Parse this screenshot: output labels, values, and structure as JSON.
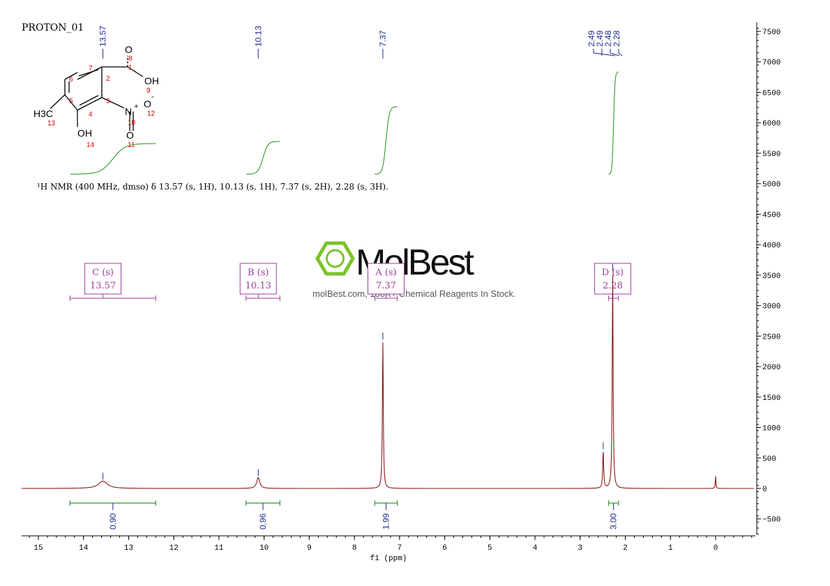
{
  "spectrum_title": "PROTON_01",
  "nmr_summary": "¹H NMR (400 MHz, dmso) δ 13.57 (s, 1H), 10.13 (s, 1H), 7.37 (s, 2H), 2.28 (s, 3H).",
  "watermark": {
    "brand": "MolBest",
    "tagline": "molBest.com, 180K+ Chemical Reagents In Stock."
  },
  "molecule": {
    "atoms": [
      {
        "symbol": "O",
        "num": "8"
      },
      {
        "symbol": "OH",
        "num": "9"
      },
      {
        "symbol": "O",
        "num": "12",
        "charge": "-"
      },
      {
        "symbol": "N",
        "num": "10",
        "charge": "+"
      },
      {
        "symbol": "O",
        "num": "11"
      },
      {
        "symbol": "OH",
        "num": "14"
      },
      {
        "symbol": "H3C",
        "num": "13"
      }
    ],
    "ring_numbers": [
      "1",
      "2",
      "3",
      "4",
      "5",
      "6",
      "7"
    ]
  },
  "colors": {
    "spectrum": "#8b1a1a",
    "integral_curve": "#2e9a2e",
    "integral_bar": "#2e9a2e",
    "peak_label": "#1c2b8c",
    "multiplet": "#9b3b9b",
    "mol_number": "#d40000",
    "brand_green": "#7cc22a"
  },
  "chart_data": {
    "type": "line",
    "title": "PROTON_01",
    "xlabel": "f1 (ppm)",
    "ylabel": "",
    "xlim": [
      15.4,
      -0.9
    ],
    "ylim": [
      -800,
      7700
    ],
    "x_ticks": [
      "15",
      "14",
      "13",
      "12",
      "11",
      "10",
      "9",
      "8",
      "7",
      "6",
      "5",
      "4",
      "3",
      "2",
      "1",
      "0"
    ],
    "y_ticks": [
      "7500",
      "7000",
      "6500",
      "6000",
      "5500",
      "5000",
      "4500",
      "4000",
      "3500",
      "3000",
      "2500",
      "2000",
      "1500",
      "1000",
      "500",
      "0",
      "−500"
    ],
    "grid": false,
    "peaks": [
      {
        "ppm": 13.57,
        "height": 120,
        "width": 0.12
      },
      {
        "ppm": 10.13,
        "height": 180,
        "width": 0.04
      },
      {
        "ppm": 7.37,
        "height": 2420,
        "width": 0.012
      },
      {
        "ppm": 2.49,
        "height": 620,
        "width": 0.012
      },
      {
        "ppm": 2.28,
        "height": 3550,
        "width": 0.012
      },
      {
        "ppm": 0.0,
        "height": 200,
        "width": 0.008
      }
    ],
    "peak_top_labels": [
      {
        "ppm": 13.57,
        "text": "13.57"
      },
      {
        "ppm": 10.13,
        "text": "10.13"
      },
      {
        "ppm": 7.37,
        "text": "7.37"
      }
    ],
    "peak_group_labels": [
      "2.49",
      "2.49",
      "2.48",
      "2.28"
    ],
    "multiplets": [
      {
        "label": "C (s)",
        "value": "13.57",
        "from": 14.3,
        "to": 12.4
      },
      {
        "label": "B (s)",
        "value": "10.13",
        "from": 10.4,
        "to": 9.65
      },
      {
        "label": "A (s)",
        "value": "7.37",
        "from": 7.55,
        "to": 7.05
      },
      {
        "label": "D (s)",
        "value": "2.28",
        "from": 2.37,
        "to": 2.15
      }
    ],
    "integrals": [
      {
        "value": "0.90",
        "from": 14.3,
        "to": 12.4
      },
      {
        "value": "0.96",
        "from": 10.4,
        "to": 9.65
      },
      {
        "value": "1.99",
        "from": 7.55,
        "to": 7.05
      },
      {
        "value": "3.00",
        "from": 2.37,
        "to": 2.15
      }
    ]
  }
}
